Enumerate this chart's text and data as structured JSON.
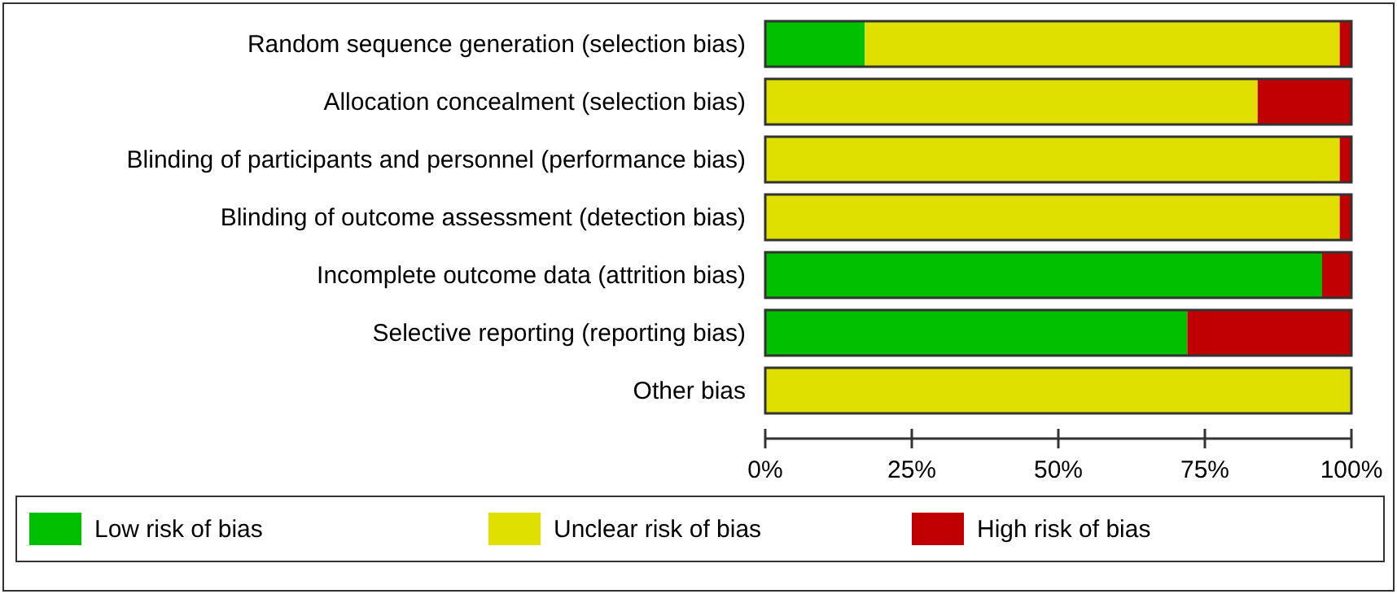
{
  "chart_data": {
    "type": "bar",
    "orientation": "horizontal",
    "stacked": true,
    "categories": [
      "Random sequence generation (selection bias)",
      "Allocation concealment (selection bias)",
      "Blinding of participants and personnel (performance bias)",
      "Blinding of outcome assessment (detection bias)",
      "Incomplete outcome data (attrition bias)",
      "Selective reporting (reporting bias)",
      "Other bias"
    ],
    "series": [
      {
        "name": "Low risk of bias",
        "color": "#00c000",
        "values": [
          17,
          0,
          0,
          0,
          95,
          72,
          0
        ]
      },
      {
        "name": "Unclear risk of bias",
        "color": "#e0e000",
        "values": [
          81,
          84,
          98,
          98,
          0,
          0,
          100
        ]
      },
      {
        "name": "High risk of bias",
        "color": "#c00000",
        "values": [
          2,
          16,
          2,
          2,
          5,
          28,
          0
        ]
      }
    ],
    "xlim": [
      0,
      100
    ],
    "xticks": [
      {
        "value": 0,
        "label": "0%"
      },
      {
        "value": 25,
        "label": "25%"
      },
      {
        "value": 50,
        "label": "50%"
      },
      {
        "value": 75,
        "label": "75%"
      },
      {
        "value": 100,
        "label": "100%"
      }
    ],
    "legend": "bottom",
    "grid": false
  }
}
